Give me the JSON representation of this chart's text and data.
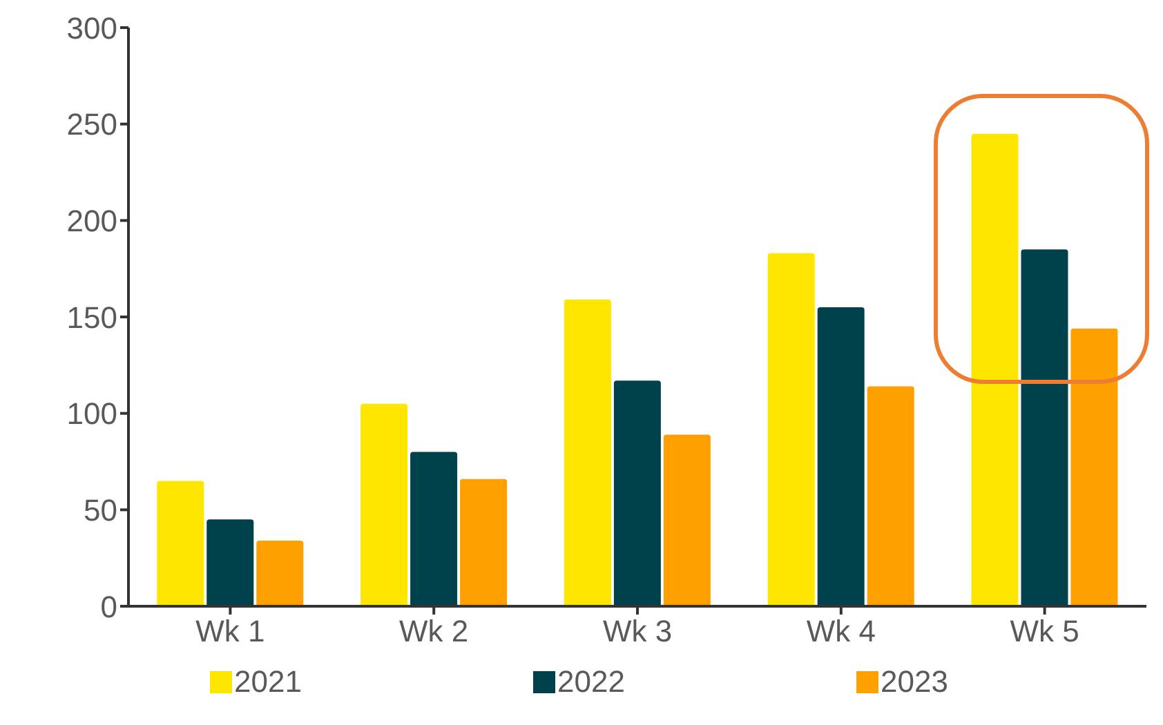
{
  "chart_data": {
    "type": "bar",
    "categories": [
      "Wk 1",
      "Wk 2",
      "Wk 3",
      "Wk 4",
      "Wk 5"
    ],
    "series": [
      {
        "name": "2021",
        "color": "#ffe600",
        "values": [
          65,
          105,
          159,
          183,
          245
        ]
      },
      {
        "name": "2022",
        "color": "#00424b",
        "values": [
          45,
          80,
          117,
          155,
          185
        ]
      },
      {
        "name": "2023",
        "color": "#ffa000",
        "values": [
          34,
          66,
          89,
          114,
          144
        ]
      }
    ],
    "ylim": [
      0,
      300
    ],
    "yticks": [
      0,
      50,
      100,
      150,
      200,
      250,
      300
    ],
    "grid": false,
    "legend": "bottom"
  }
}
